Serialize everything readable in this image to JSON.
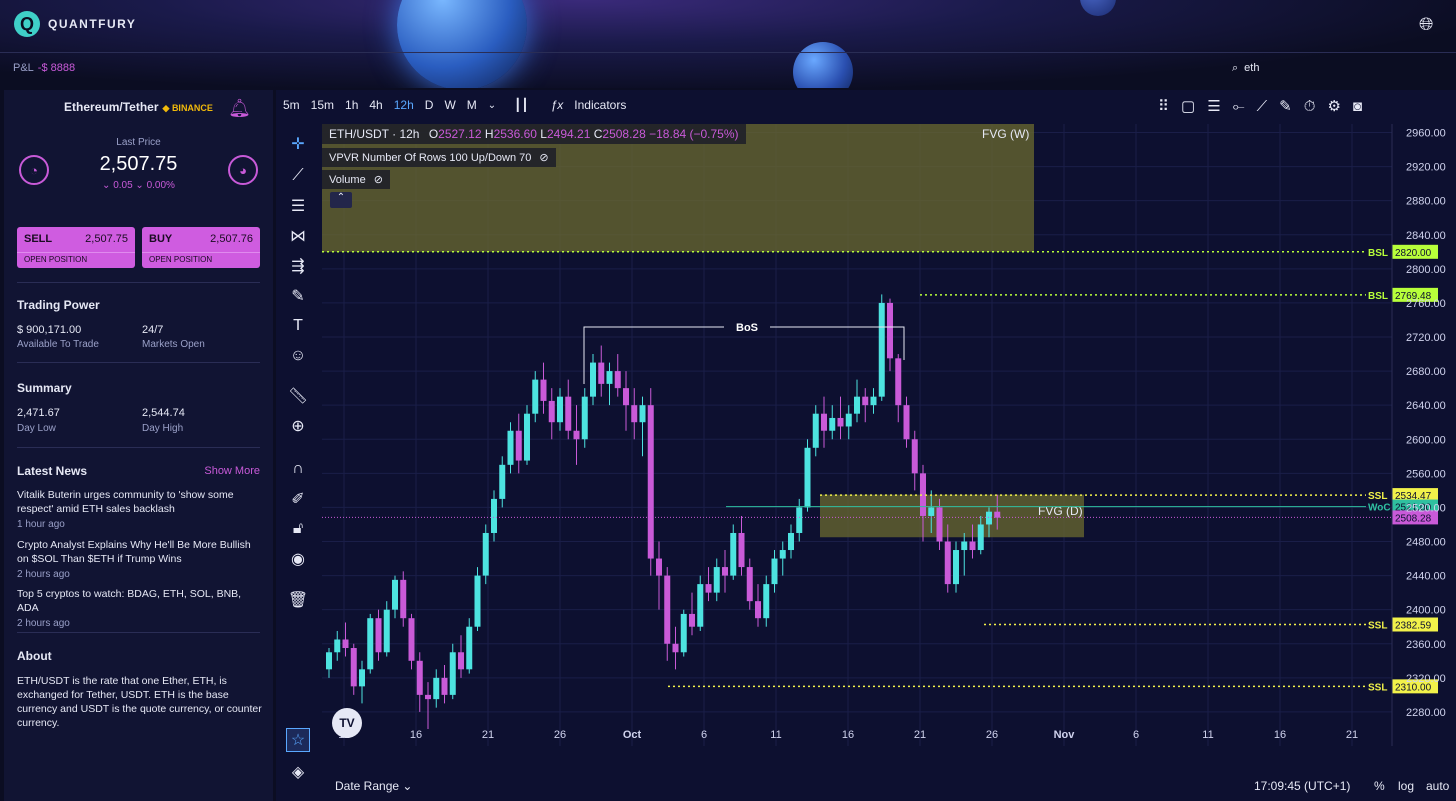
{
  "app": {
    "name": "QUANTFURY"
  },
  "header": {
    "pnl_label": "P&L",
    "pnl_value": "-$ 8888",
    "search_value": "eth"
  },
  "sidebar": {
    "pair": "Ethereum/Tether",
    "exchange": "BINANCE",
    "last_price_label": "Last Price",
    "last_price": "2,507.75",
    "change": "⌄ 0.05  ⌄ 0.00%",
    "sell": {
      "label": "SELL",
      "price": "2,507.75",
      "sub": "OPEN POSITION"
    },
    "buy": {
      "label": "BUY",
      "price": "2,507.76",
      "sub": "OPEN POSITION"
    },
    "trading_power": {
      "title": "Trading Power",
      "available": "$ 900,171.00",
      "available_label": "Available To Trade",
      "markets": "24/7",
      "markets_label": "Markets Open"
    },
    "summary": {
      "title": "Summary",
      "day_low": "2,471.67",
      "day_low_label": "Day Low",
      "day_high": "2,544.74",
      "day_high_label": "Day High"
    },
    "news": {
      "title": "Latest News",
      "show_more": "Show More",
      "items": [
        {
          "headline": "Vitalik Buterin urges community to 'show some respect' amid ETH sales backlash",
          "time": "1 hour ago"
        },
        {
          "headline": "Crypto Analyst Explains Why He'll Be More Bullish on $SOL Than $ETH if Trump Wins",
          "time": "2 hours ago"
        },
        {
          "headline": "Top 5 cryptos to watch: BDAG, ETH, SOL, BNB, ADA",
          "time": "2 hours ago"
        }
      ]
    },
    "about": {
      "title": "About",
      "text": "ETH/USDT is the rate that one Ether, ETH, is exchanged for Tether, USDT. ETH is the base currency and USDT is the quote currency, or counter currency."
    }
  },
  "toolbar": {
    "timeframes": [
      "5m",
      "15m",
      "1h",
      "4h",
      "12h",
      "D",
      "W",
      "M"
    ],
    "active": "12h",
    "indicators_label": "Indicators"
  },
  "legend": {
    "symbol": "ETH/USDT · 12h",
    "o": "2527.12",
    "h": "2536.60",
    "l": "2494.21",
    "c": "2508.28",
    "chg": "−18.84 (−0.75%)",
    "vpvr": "VPVR Number Of Rows 100 Up/Down 70",
    "volume": "Volume"
  },
  "annotations": {
    "fvg_w": "FVG (W)",
    "fvg_d": "FVG (D)",
    "bos": "BoS",
    "bsl": "BSL",
    "ssl": "SSL",
    "woc": "WoC"
  },
  "bottom": {
    "date_range": "Date Range",
    "time": "17:09:45 (UTC+1)",
    "pct": "%",
    "log": "log",
    "auto": "auto"
  },
  "colors": {
    "up": "#4de3e0",
    "down": "#c95ad8",
    "bg": "#0d1030",
    "fvg": "#6b6a2f",
    "bsl": "#b8ff3a",
    "ssl": "#f2f24a",
    "woc": "#2fc0a0"
  },
  "chart_data": {
    "type": "candlestick",
    "ylim": [
      2240,
      2970
    ],
    "price_ticks": [
      2960,
      2920,
      2880,
      2840,
      2800,
      2760,
      2720,
      2680,
      2640,
      2600,
      2560,
      2520,
      2480,
      2440,
      2400,
      2360,
      2320,
      2280
    ],
    "date_ticks": [
      "11",
      "16",
      "21",
      "26",
      "Oct",
      "6",
      "11",
      "16",
      "21",
      "26",
      "Nov",
      "6",
      "11",
      "16",
      "21"
    ],
    "levels": [
      {
        "label": "BSL",
        "price": 2820.0,
        "text": "2820.00"
      },
      {
        "label": "BSL",
        "price": 2769.48,
        "text": "2769.48"
      },
      {
        "label": "SSL",
        "price": 2534.47,
        "text": "2534.47"
      },
      {
        "label": "WoC",
        "price": 2521.0,
        "text": "2521.00"
      },
      {
        "label": "SSL",
        "price": 2382.59,
        "text": "2382.59"
      },
      {
        "label": "SSL",
        "price": 2310.0,
        "text": "2310.00"
      }
    ],
    "last": {
      "price": 2508.28,
      "text": "2508.28"
    },
    "zones": [
      {
        "label": "FVG (W)",
        "from": 2820,
        "to": 2970
      },
      {
        "label": "FVG (D)",
        "from": 2485,
        "to": 2535
      }
    ],
    "candles": [
      [
        2330,
        2355,
        2320,
        2350
      ],
      [
        2350,
        2375,
        2340,
        2365
      ],
      [
        2365,
        2385,
        2345,
        2355
      ],
      [
        2355,
        2360,
        2300,
        2310
      ],
      [
        2310,
        2340,
        2290,
        2330
      ],
      [
        2330,
        2395,
        2325,
        2390
      ],
      [
        2390,
        2400,
        2340,
        2350
      ],
      [
        2350,
        2410,
        2345,
        2400
      ],
      [
        2400,
        2440,
        2390,
        2435
      ],
      [
        2435,
        2445,
        2380,
        2390
      ],
      [
        2390,
        2395,
        2330,
        2340
      ],
      [
        2340,
        2350,
        2280,
        2300
      ],
      [
        2300,
        2315,
        2260,
        2295
      ],
      [
        2295,
        2330,
        2285,
        2320
      ],
      [
        2320,
        2335,
        2290,
        2300
      ],
      [
        2300,
        2360,
        2295,
        2350
      ],
      [
        2350,
        2370,
        2320,
        2330
      ],
      [
        2330,
        2390,
        2325,
        2380
      ],
      [
        2380,
        2450,
        2375,
        2440
      ],
      [
        2440,
        2500,
        2430,
        2490
      ],
      [
        2490,
        2540,
        2480,
        2530
      ],
      [
        2530,
        2580,
        2520,
        2570
      ],
      [
        2570,
        2620,
        2560,
        2610
      ],
      [
        2610,
        2630,
        2560,
        2575
      ],
      [
        2575,
        2640,
        2570,
        2630
      ],
      [
        2630,
        2680,
        2620,
        2670
      ],
      [
        2670,
        2690,
        2630,
        2645
      ],
      [
        2645,
        2660,
        2600,
        2620
      ],
      [
        2620,
        2660,
        2610,
        2650
      ],
      [
        2650,
        2670,
        2600,
        2610
      ],
      [
        2610,
        2640,
        2570,
        2600
      ],
      [
        2600,
        2660,
        2590,
        2650
      ],
      [
        2650,
        2700,
        2640,
        2690
      ],
      [
        2690,
        2710,
        2650,
        2665
      ],
      [
        2665,
        2690,
        2640,
        2680
      ],
      [
        2680,
        2700,
        2650,
        2660
      ],
      [
        2660,
        2680,
        2610,
        2640
      ],
      [
        2640,
        2660,
        2600,
        2620
      ],
      [
        2620,
        2650,
        2580,
        2640
      ],
      [
        2640,
        2660,
        2440,
        2460
      ],
      [
        2460,
        2480,
        2400,
        2440
      ],
      [
        2440,
        2450,
        2340,
        2360
      ],
      [
        2360,
        2380,
        2330,
        2350
      ],
      [
        2350,
        2400,
        2345,
        2395
      ],
      [
        2395,
        2420,
        2370,
        2380
      ],
      [
        2380,
        2440,
        2375,
        2430
      ],
      [
        2430,
        2450,
        2410,
        2420
      ],
      [
        2420,
        2460,
        2410,
        2450
      ],
      [
        2450,
        2470,
        2420,
        2440
      ],
      [
        2440,
        2500,
        2435,
        2490
      ],
      [
        2490,
        2510,
        2440,
        2450
      ],
      [
        2450,
        2460,
        2400,
        2410
      ],
      [
        2410,
        2430,
        2380,
        2390
      ],
      [
        2390,
        2440,
        2380,
        2430
      ],
      [
        2430,
        2470,
        2420,
        2460
      ],
      [
        2460,
        2480,
        2440,
        2470
      ],
      [
        2470,
        2500,
        2460,
        2490
      ],
      [
        2490,
        2530,
        2480,
        2520
      ],
      [
        2520,
        2600,
        2515,
        2590
      ],
      [
        2590,
        2640,
        2580,
        2630
      ],
      [
        2630,
        2650,
        2590,
        2610
      ],
      [
        2610,
        2640,
        2600,
        2625
      ],
      [
        2625,
        2650,
        2600,
        2615
      ],
      [
        2615,
        2640,
        2600,
        2630
      ],
      [
        2630,
        2670,
        2620,
        2650
      ],
      [
        2650,
        2660,
        2620,
        2640
      ],
      [
        2640,
        2660,
        2630,
        2650
      ],
      [
        2650,
        2770,
        2645,
        2760
      ],
      [
        2760,
        2765,
        2680,
        2695
      ],
      [
        2695,
        2700,
        2620,
        2640
      ],
      [
        2640,
        2650,
        2590,
        2600
      ],
      [
        2600,
        2610,
        2540,
        2560
      ],
      [
        2560,
        2570,
        2480,
        2510
      ],
      [
        2510,
        2540,
        2490,
        2520
      ],
      [
        2520,
        2530,
        2470,
        2480
      ],
      [
        2480,
        2500,
        2420,
        2430
      ],
      [
        2430,
        2480,
        2420,
        2470
      ],
      [
        2470,
        2490,
        2440,
        2480
      ],
      [
        2480,
        2500,
        2460,
        2470
      ],
      [
        2470,
        2510,
        2465,
        2500
      ],
      [
        2500,
        2520,
        2485,
        2515
      ],
      [
        2515,
        2535,
        2494,
        2508
      ]
    ]
  }
}
